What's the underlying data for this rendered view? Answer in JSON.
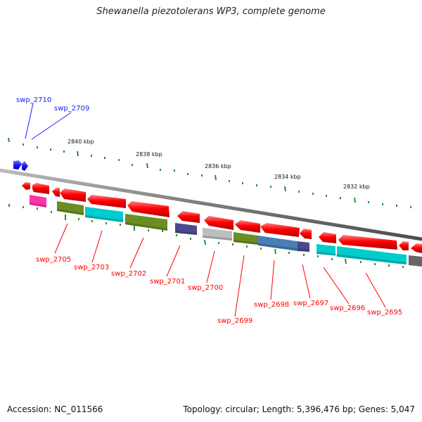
{
  "title": "Shewanella piezotolerans WP3, complete genome",
  "accession": "Accession: NC_011566",
  "summary": "Topology: circular; Length: 5,396,476 bp; Genes: 5,047",
  "scale_labels": [
    "2840 kbp",
    "2838 kbp",
    "2836 kbp",
    "2834 kbp",
    "2832 kbp"
  ],
  "blue_gene_labels": [
    "swp_2710",
    "swp_2709"
  ],
  "red_gene_labels": [
    "swp_2705",
    "swp_2703",
    "swp_2702",
    "swp_2701",
    "swp_2700",
    "swp_2699",
    "swp_2698",
    "swp_2697",
    "swp_2696",
    "swp_2695"
  ],
  "colors": {
    "forward_genes": "#1a1aff",
    "reverse_genes": "#ff0000",
    "backbone": "#808080",
    "ticks": "#2e8b2e",
    "pink": "#ff33aa",
    "olive": "#6b8e23",
    "cyan": "#00cccc",
    "navy": "#4b4a8c",
    "silver": "#bdbdbd",
    "steel": "#4a7fb5",
    "dark_grey": "#666666"
  }
}
